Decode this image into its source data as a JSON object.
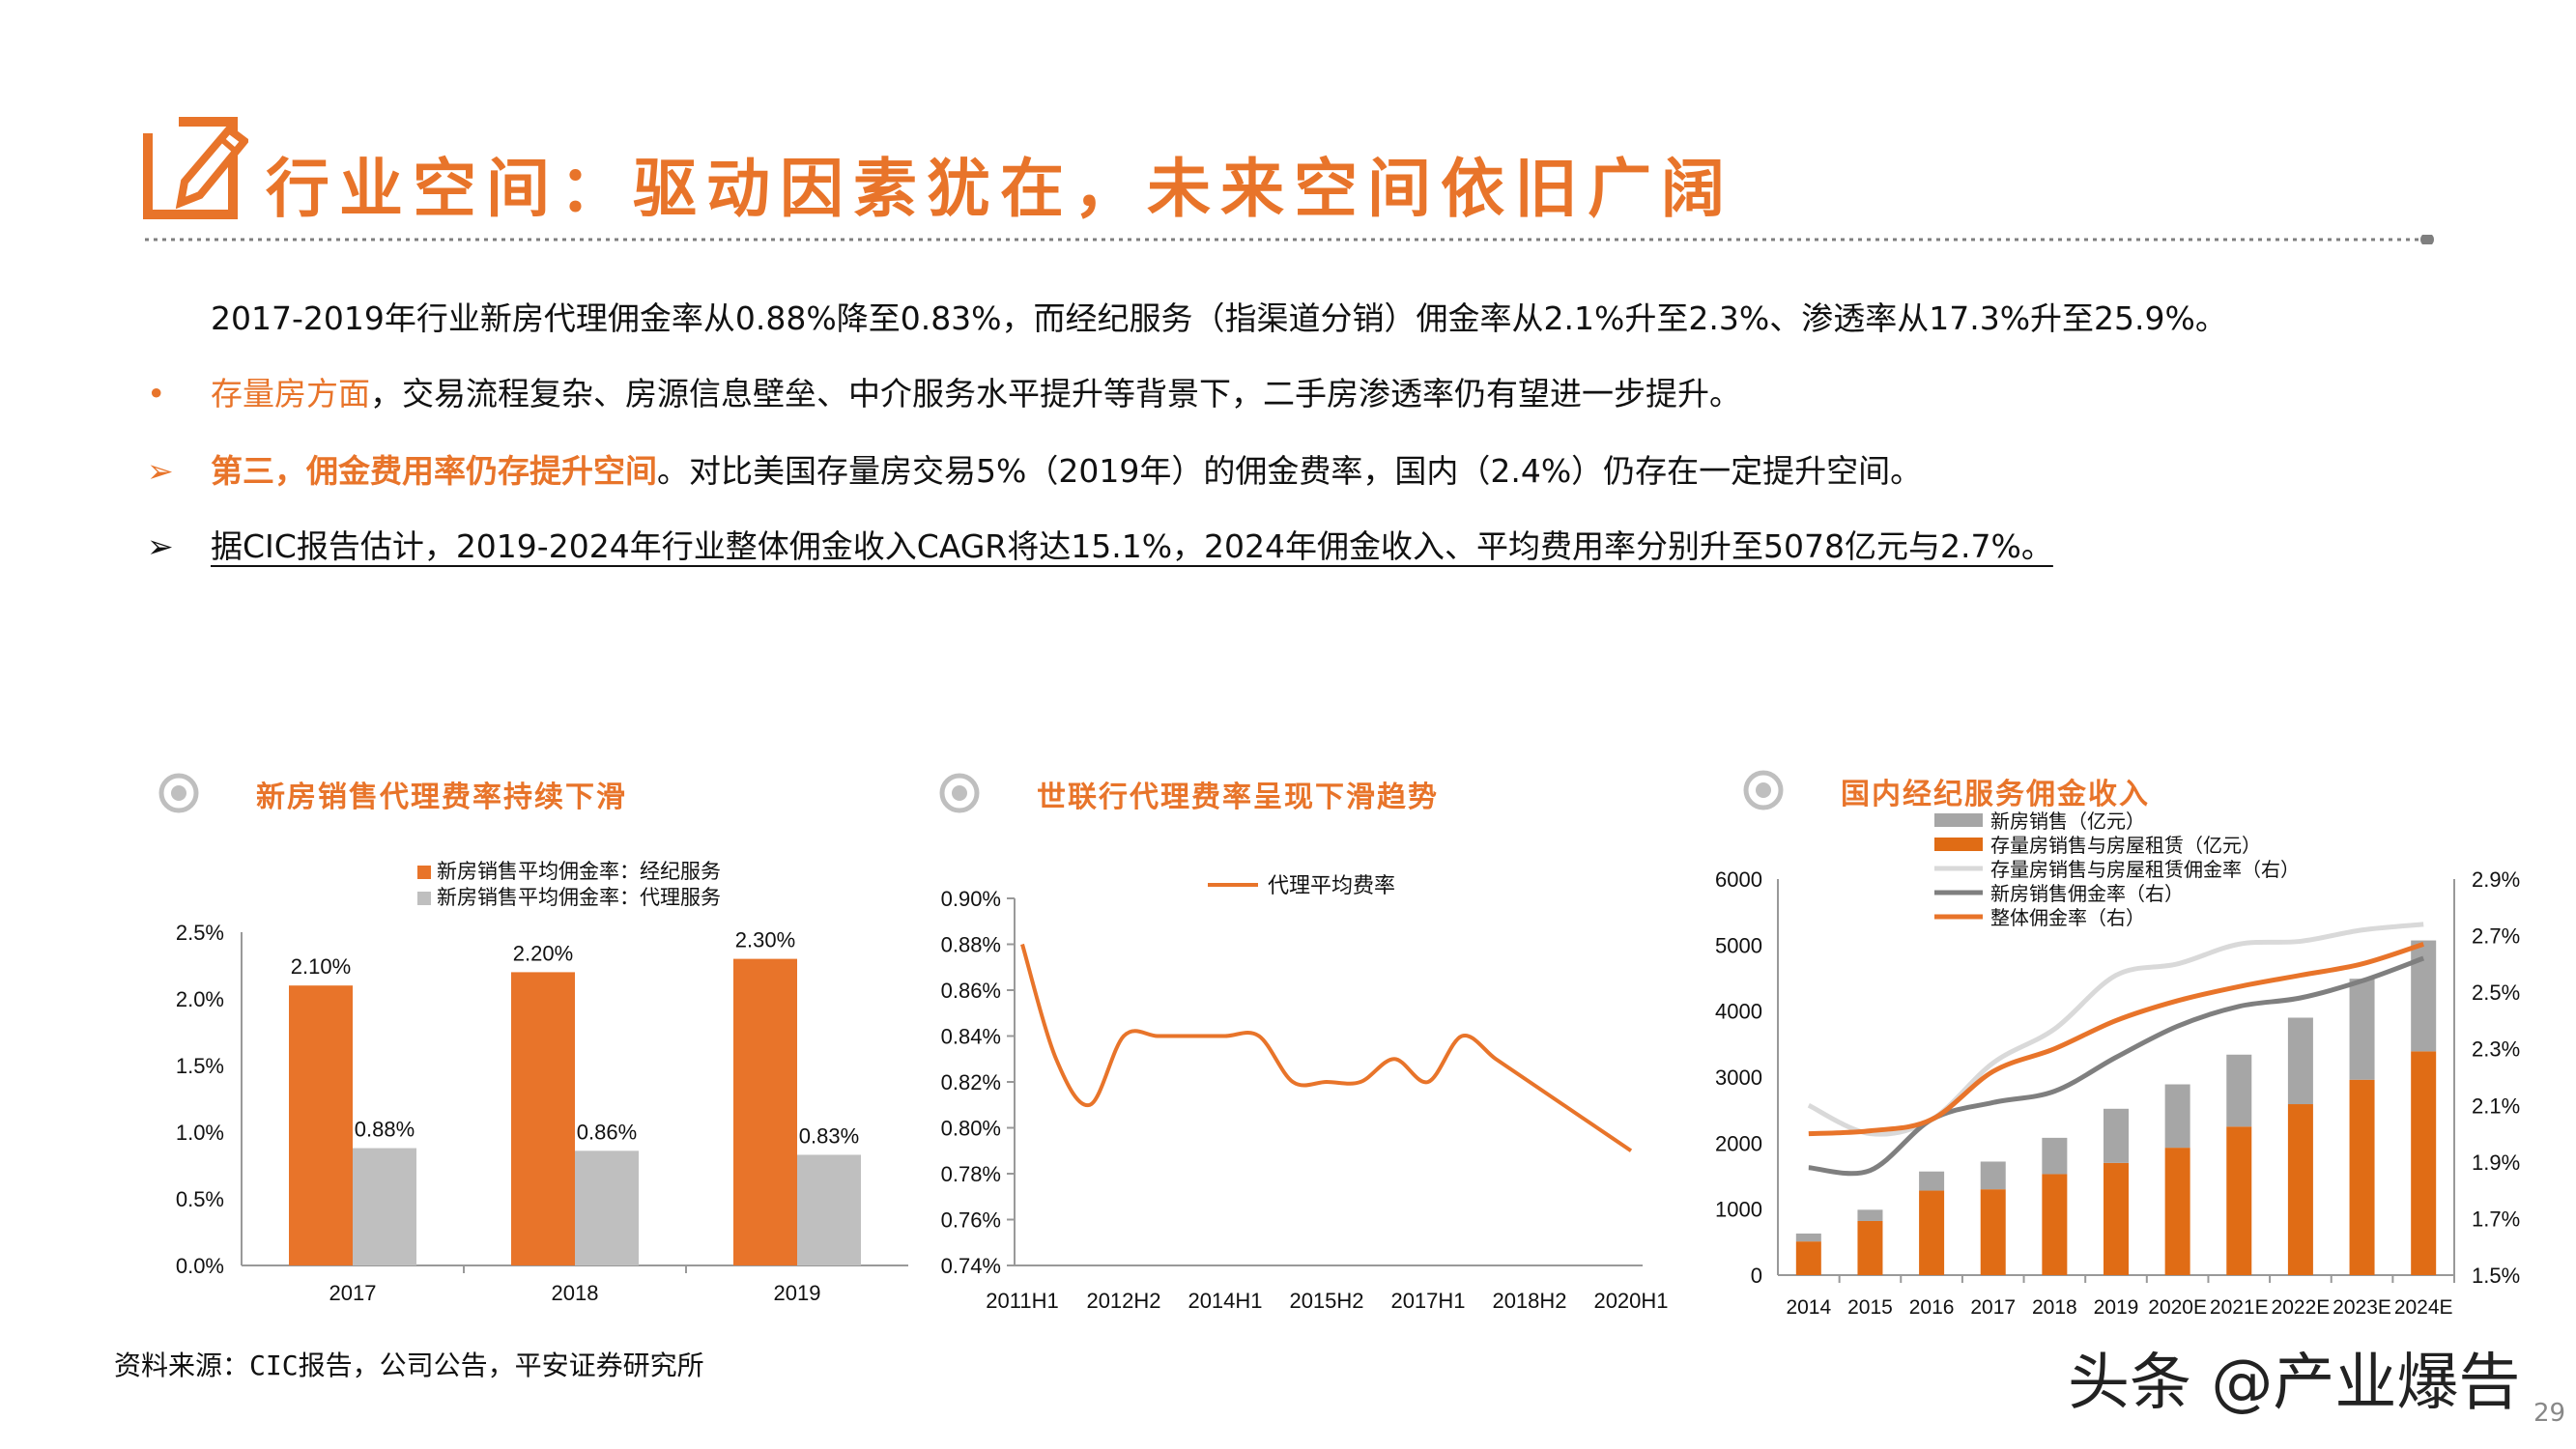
{
  "header": {
    "title": "行业空间：驱动因素犹在，未来空间依旧广阔"
  },
  "body": {
    "intro": "2017-2019年行业新房代理佣金率从0.88%降至0.83%，而经纪服务（指渠道分销）佣金率从2.1%升至2.3%、渗透率从17.3%升至25.9%。",
    "bullet1_marker": "•",
    "bullet1_highlight": "存量房方面",
    "bullet1_rest": "，交易流程复杂、房源信息壁垒、中介服务水平提升等背景下，二手房渗透率仍有望进一步提升。",
    "bullet2_marker": "➢",
    "bullet2_highlight": "第三，佣金费用率仍存提升空间",
    "bullet2_rest": "。对比美国存量房交易5%（2019年）的佣金费率，国内（2.4%）仍存在一定提升空间。",
    "bullet3_marker": "➢",
    "bullet3_text": "据CIC报告估计，2019-2024年行业整体佣金收入CAGR将达15.1%，2024年佣金收入、平均费用率分别升至5078亿元与2.7%。"
  },
  "chart_titles": {
    "c1": "新房销售代理费率持续下滑",
    "c2": "世联行代理费率呈现下滑趋势",
    "c3": "国内经纪服务佣金收入"
  },
  "colors": {
    "orange": "#e8742a",
    "darkorange": "#e06c15",
    "gray": "#bfbfbf",
    "darkgray": "#a6a6a6",
    "lightgray": "#d9d9d9",
    "charcoal": "#7f7f7f"
  },
  "chart_data": [
    {
      "type": "bar",
      "categories": [
        "2017",
        "2018",
        "2019"
      ],
      "series": [
        {
          "name": "新房销售平均佣金率：经纪服务",
          "values": [
            2.1,
            2.2,
            2.3
          ],
          "labels": [
            "2.10%",
            "2.20%",
            "2.30%"
          ]
        },
        {
          "name": "新房销售平均佣金率：代理服务",
          "values": [
            0.88,
            0.86,
            0.83
          ],
          "labels": [
            "0.88%",
            "0.86%",
            "0.83%"
          ]
        }
      ],
      "ylim": [
        0,
        2.5
      ],
      "yticks": [
        "0.0%",
        "0.5%",
        "1.0%",
        "1.5%",
        "2.0%",
        "2.5%"
      ],
      "legend": "top"
    },
    {
      "type": "line",
      "x": [
        "2011H1",
        "2011H2",
        "2012H1",
        "2012H2",
        "2013H1",
        "2013H2",
        "2014H1",
        "2014H2",
        "2015H1",
        "2015H2",
        "2016H1",
        "2016H2",
        "2017H1",
        "2017H2",
        "2018H1",
        "2018H2",
        "2019H1",
        "2019H2",
        "2020H1"
      ],
      "xticks": [
        "2011H1",
        "2012H2",
        "2014H1",
        "2015H2",
        "2017H1",
        "2018H2",
        "2020H1"
      ],
      "series": [
        {
          "name": "代理平均费率",
          "values": [
            0.88,
            0.83,
            0.81,
            0.84,
            0.84,
            0.84,
            0.84,
            0.84,
            0.82,
            0.82,
            0.82,
            0.83,
            0.82,
            0.84,
            0.83,
            0.82,
            0.81,
            0.8,
            0.79
          ]
        }
      ],
      "ylim": [
        0.74,
        0.9
      ],
      "yticks": [
        "0.74%",
        "0.76%",
        "0.78%",
        "0.80%",
        "0.82%",
        "0.84%",
        "0.86%",
        "0.88%",
        "0.90%"
      ],
      "legend": "top"
    },
    {
      "type": "bar",
      "categories": [
        "2014",
        "2015",
        "2016",
        "2017",
        "2018",
        "2019",
        "2020E",
        "2021E",
        "2022E",
        "2023E",
        "2024E"
      ],
      "series": [
        {
          "name": "新房销售（亿元）",
          "kind": "stacked-bar",
          "values": [
            120,
            170,
            290,
            420,
            550,
            820,
            960,
            1090,
            1310,
            1530,
            1680
          ]
        },
        {
          "name": "存量房销售与房屋租赁（亿元）",
          "kind": "stacked-bar",
          "values": [
            510,
            820,
            1280,
            1300,
            1530,
            1700,
            1930,
            2250,
            2590,
            2960,
            3390
          ]
        },
        {
          "name": "存量房销售与房屋租赁佣金率（右）",
          "kind": "line-right",
          "values": [
            2.1,
            2.0,
            2.05,
            2.25,
            2.37,
            2.56,
            2.6,
            2.67,
            2.68,
            2.72,
            2.74
          ]
        },
        {
          "name": "新房销售佣金率（右）",
          "kind": "line-right",
          "values": [
            1.88,
            1.87,
            2.05,
            2.11,
            2.15,
            2.27,
            2.38,
            2.45,
            2.48,
            2.54,
            2.62
          ]
        },
        {
          "name": "整体佣金率（右）",
          "kind": "line-right",
          "values": [
            2.0,
            2.01,
            2.05,
            2.22,
            2.3,
            2.4,
            2.47,
            2.52,
            2.56,
            2.6,
            2.67
          ]
        }
      ],
      "ylim_left": [
        0,
        6000
      ],
      "yticks_left": [
        "0",
        "1000",
        "2000",
        "3000",
        "4000",
        "5000",
        "6000"
      ],
      "ylim_right": [
        1.5,
        2.9
      ],
      "yticks_right": [
        "1.5%",
        "1.7%",
        "1.9%",
        "2.1%",
        "2.3%",
        "2.5%",
        "2.7%",
        "2.9%"
      ],
      "legend": "top"
    }
  ],
  "footer": {
    "source": "资料来源：CIC报告，公司公告，平安证券研究所",
    "watermark": "头条 @产业爆告",
    "page_number": "29"
  }
}
